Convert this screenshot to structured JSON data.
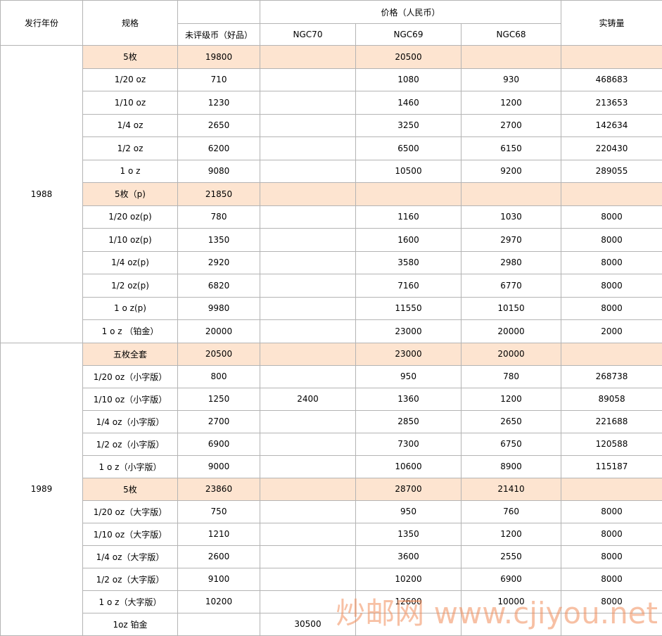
{
  "header": {
    "year": "发行年份",
    "spec": "规格",
    "price": "价格（人民币）",
    "unrated": "未评级币（好品）",
    "ngc70": "NGC70",
    "ngc69": "NGC69",
    "ngc68": "NGC68",
    "mintage": "实铸量"
  },
  "highlight_rows": [
    0,
    6
  ],
  "groups": [
    {
      "year": "1988",
      "rows": [
        [
          "5枚",
          "19800",
          null,
          "20500",
          null,
          null
        ],
        [
          "1/20 oz",
          "710",
          null,
          "1080",
          "930",
          "468683"
        ],
        [
          "1/10 oz",
          "1230",
          null,
          "1460",
          "1200",
          "213653"
        ],
        [
          "1/4 oz",
          "2650",
          null,
          "3250",
          "2700",
          "142634"
        ],
        [
          "1/2 oz",
          "6200",
          null,
          "6500",
          "6150",
          "220430"
        ],
        [
          "1 o z",
          "9080",
          null,
          "10500",
          "9200",
          "289055"
        ],
        [
          "5枚（p)",
          "21850",
          null,
          null,
          null,
          null
        ],
        [
          "1/20 oz(p)",
          "780",
          null,
          "1160",
          "1030",
          "8000"
        ],
        [
          "1/10 oz(p)",
          "1350",
          null,
          "1600",
          "2970",
          "8000"
        ],
        [
          "1/4 oz(p)",
          "2920",
          null,
          "3580",
          "2980",
          "8000"
        ],
        [
          "1/2 oz(p)",
          "6820",
          null,
          "7160",
          "6770",
          "8000"
        ],
        [
          "1 o z(p)",
          "9980",
          null,
          "11550",
          "10150",
          "8000"
        ],
        [
          "1 o z （铂金）",
          "20000",
          null,
          "23000",
          "20000",
          "2000"
        ]
      ]
    },
    {
      "year": "1989",
      "rows": [
        [
          "五枚全套",
          "20500",
          null,
          "23000",
          "20000",
          null
        ],
        [
          "1/20 oz（小字版）",
          "800",
          null,
          "950",
          "780",
          "268738"
        ],
        [
          "1/10 oz（小字版）",
          "1250",
          "2400",
          "1360",
          "1200",
          "89058"
        ],
        [
          "1/4 oz（小字版）",
          "2700",
          null,
          "2850",
          "2650",
          "221688"
        ],
        [
          "1/2 oz（小字版）",
          "6900",
          null,
          "7300",
          "6750",
          "120588"
        ],
        [
          "1 o z（小字版）",
          "9000",
          null,
          "10600",
          "8900",
          "115187"
        ],
        [
          "5枚",
          "23860",
          null,
          "28700",
          "21410",
          null
        ],
        [
          "1/20 oz（大字版）",
          "750",
          null,
          "950",
          "760",
          "8000"
        ],
        [
          "1/10 oz（大字版）",
          "1210",
          null,
          "1350",
          "1200",
          "8000"
        ],
        [
          "1/4 oz（大字版）",
          "2600",
          null,
          "3600",
          "2550",
          "8000"
        ],
        [
          "1/2 oz（大字版）",
          "9100",
          null,
          "10200",
          "6900",
          "8000"
        ],
        [
          "1 o z（大字版）",
          "10200",
          null,
          "12600",
          "10000",
          "8000"
        ],
        [
          "1oz 铂金",
          null,
          "30500",
          null,
          null,
          null
        ]
      ]
    }
  ],
  "watermark": "炒邮网 www.cjiyou.net"
}
